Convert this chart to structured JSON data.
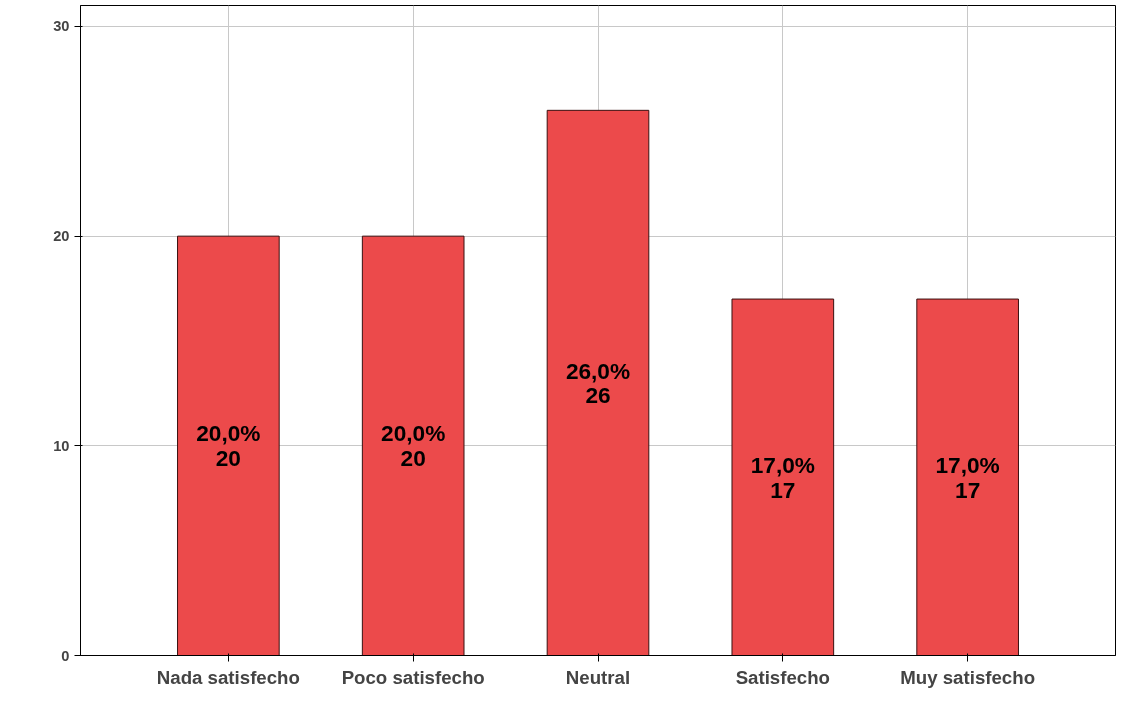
{
  "chart_data": {
    "type": "bar",
    "categories": [
      "Nada satisfecho",
      "Poco satisfecho",
      "Neutral",
      "Satisfecho",
      "Muy satisfecho"
    ],
    "values": [
      20,
      20,
      26,
      17,
      17
    ],
    "value_labels": [
      "20,0%\n20",
      "20,0%\n20",
      "26,0%\n26",
      "17,0%\n17",
      "17,0%\n17"
    ],
    "color": "#ec4a4b",
    "ylim": [
      0,
      31
    ],
    "yticks": [
      0,
      10,
      20,
      30
    ],
    "grid": true
  }
}
